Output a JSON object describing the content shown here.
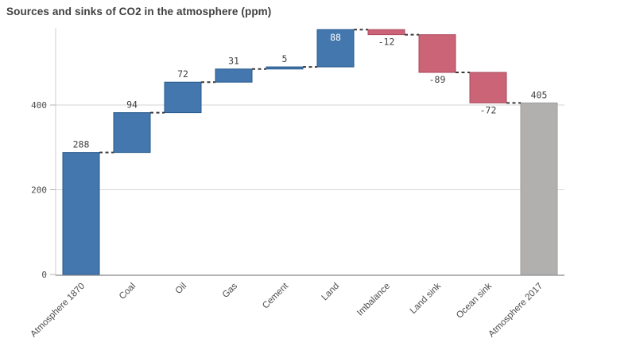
{
  "page": {
    "title": "Sources and sinks of CO2 in the atmosphere (ppm)"
  },
  "chart_data": {
    "type": "bar",
    "subtype": "waterfall",
    "title": "Sources and sinks of CO2 in the atmosphere (ppm)",
    "categories": [
      "Atmosphere 1870",
      "Coal",
      "Oil",
      "Gas",
      "Cement",
      "Land",
      "Imbalance",
      "Land sink",
      "Ocean sink",
      "Atmosphere 2017"
    ],
    "values": [
      288,
      94,
      72,
      31,
      5,
      88,
      -12,
      -89,
      -72,
      405
    ],
    "bar_kinds": [
      "increase",
      "increase",
      "increase",
      "increase",
      "increase",
      "increase",
      "decrease",
      "decrease",
      "decrease",
      "total"
    ],
    "value_labels": [
      "288",
      "94",
      "72",
      "31",
      "5",
      "88",
      "-12",
      "-89",
      "-72",
      "405"
    ],
    "label_placement": [
      "above",
      "above",
      "above",
      "above",
      "above",
      "inside",
      "below",
      "below",
      "below",
      "above"
    ],
    "cumulative_start": [
      0,
      288,
      382,
      454,
      485,
      490,
      578,
      566,
      477,
      0
    ],
    "cumulative_end": [
      288,
      382,
      454,
      485,
      490,
      578,
      566,
      477,
      405,
      405
    ],
    "y_ticks": [
      0,
      200,
      400
    ],
    "ylim": [
      0,
      585
    ],
    "xlabel": "",
    "ylabel": "",
    "grid": true,
    "legend": false,
    "connector_style": "dashed",
    "colors": {
      "increase_fill": "#4377ad",
      "increase_border": "#27598c",
      "decrease_fill": "#ca6476",
      "decrease_border": "#ab4a5e",
      "total_fill": "#b1b0af",
      "total_border": "#9e9d9c",
      "connector": "#383838",
      "gridline": "#d6d6d6",
      "baseline": "#b3b3b3",
      "axis_line": "#cfcfcf",
      "tick_text": "#4d4d4d",
      "value_text": "#404040",
      "inside_label_text": "#ffffff",
      "title_text": "#404040"
    }
  }
}
